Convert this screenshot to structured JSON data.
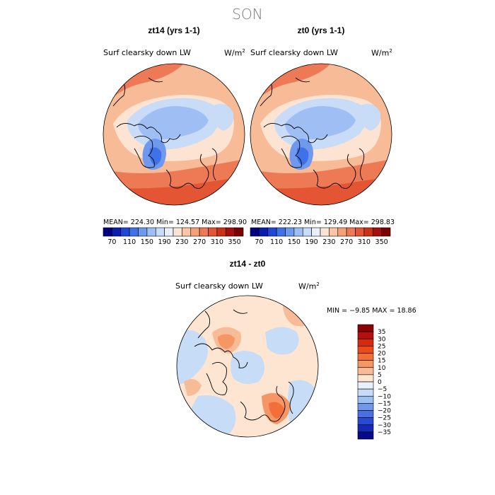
{
  "figure": {
    "season": "SON"
  },
  "panels": [
    {
      "title": "zt14 (yrs 1-1)",
      "variable": "Surf clearsky down LW",
      "units": "W/m",
      "units_exp": "2",
      "stats": "MEAN=  224.30    Min=  124.57    Max=  298.90",
      "colorbar_ticks": [
        "70",
        "110",
        "150",
        "190",
        "230",
        "270",
        "310",
        "350"
      ]
    },
    {
      "title": "zt0 (yrs 1-1)",
      "variable": "Surf clearsky down LW",
      "units": "W/m",
      "units_exp": "2",
      "stats": "MEAN=  222.23    Min=  129.49    Max=  298.83",
      "colorbar_ticks": [
        "70",
        "110",
        "150",
        "190",
        "230",
        "270",
        "310",
        "350"
      ]
    }
  ],
  "diff_panel": {
    "title": "zt14 - zt0",
    "variable": "Surf clearsky down LW",
    "units": "W/m",
    "units_exp": "2",
    "stats": "MIN =   −9.85  MAX =   18.86",
    "colorbar_ticks": [
      "35",
      "30",
      "25",
      "20",
      "15",
      "10",
      "5",
      "0",
      "−5",
      "−10",
      "−15",
      "−20",
      "−25",
      "−30",
      "−35"
    ]
  },
  "colors": {
    "abs_scale": [
      "#000080",
      "#0a1fb0",
      "#1f48d8",
      "#3f72e8",
      "#6f99ef",
      "#9fbff4",
      "#c8dcf8",
      "#e9eff9",
      "#fde4d2",
      "#fac6a6",
      "#f5a07a",
      "#ee7a55",
      "#e35533",
      "#cc3017",
      "#a50f0f",
      "#7a0000"
    ],
    "diff_scale": [
      "#8b0000",
      "#b50f0f",
      "#d42a10",
      "#ec4a18",
      "#f26f3a",
      "#f59665",
      "#f8bb98",
      "#fde5d2",
      "#e8f0fb",
      "#c6dcf7",
      "#9dc0f2",
      "#7196ea",
      "#4a6fe0",
      "#2a4ad3",
      "#1529b6",
      "#050a8a"
    ]
  }
}
